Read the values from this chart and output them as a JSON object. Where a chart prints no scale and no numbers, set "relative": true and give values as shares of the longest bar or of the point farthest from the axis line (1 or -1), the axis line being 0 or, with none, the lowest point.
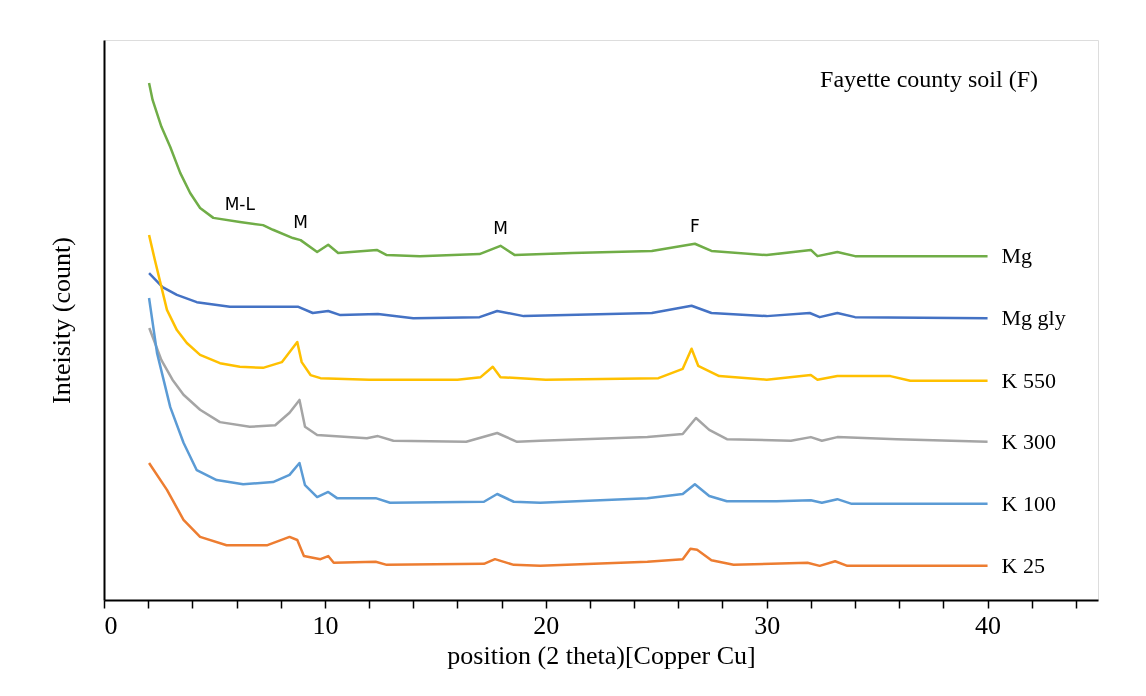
{
  "chart_data": {
    "type": "line",
    "title": "Fayette county soil (F)",
    "xlabel": "position (2 theta)[Copper Cu]",
    "ylabel": "Inteisity (count)",
    "relative": true,
    "xlim": [
      0,
      45
    ],
    "xticks": [
      0,
      {
        "value": 2,
        "label": null
      },
      {
        "value": 4,
        "label": null
      },
      {
        "value": 6,
        "label": null
      },
      {
        "value": 8,
        "label": null
      },
      10,
      {
        "value": 12,
        "label": null
      },
      {
        "value": 14,
        "label": null
      },
      {
        "value": 16,
        "label": null
      },
      {
        "value": 18,
        "label": null
      },
      20,
      {
        "value": 22,
        "label": null
      },
      {
        "value": 24,
        "label": null
      },
      {
        "value": 26,
        "label": null
      },
      {
        "value": 28,
        "label": null
      },
      30,
      {
        "value": 32,
        "label": null
      },
      {
        "value": 34,
        "label": null
      },
      {
        "value": 36,
        "label": null
      },
      {
        "value": 38,
        "label": null
      },
      40,
      {
        "value": 42,
        "label": null
      },
      {
        "value": 44,
        "label": null
      }
    ],
    "grid": false,
    "marker": "none",
    "line_style": "solid",
    "annotations": [
      {
        "text": "M-L",
        "x": 6.15,
        "y": 0.731
      },
      {
        "text": "M",
        "x": 8.9,
        "y": 0.696
      },
      {
        "text": "M",
        "x": 17.95,
        "y": 0.685
      },
      {
        "text": "F",
        "x": 26.75,
        "y": 0.689
      }
    ],
    "series": [
      {
        "name": "Mg",
        "color": "#70ad47",
        "x": [
          2.04,
          2.2,
          2.6,
          3.0,
          3.45,
          3.9,
          4.35,
          4.95,
          6.15,
          7.2,
          7.65,
          8.55,
          8.9,
          9.65,
          10.15,
          10.6,
          12.35,
          12.8,
          14.3,
          17.0,
          17.95,
          18.6,
          21.2,
          24.8,
          26.75,
          27.5,
          30.0,
          32.0,
          32.3,
          33.2,
          34.0,
          40.0
        ],
        "values": [
          1.0,
          0.967,
          0.915,
          0.876,
          0.826,
          0.787,
          0.758,
          0.739,
          0.731,
          0.725,
          0.716,
          0.7,
          0.696,
          0.673,
          0.687,
          0.671,
          0.677,
          0.667,
          0.665,
          0.669,
          0.685,
          0.667,
          0.671,
          0.675,
          0.689,
          0.675,
          0.667,
          0.677,
          0.665,
          0.673,
          0.665,
          0.665
        ]
      },
      {
        "name": "Mg gly",
        "color": "#4472c4",
        "x": [
          2.04,
          2.65,
          3.3,
          4.2,
          5.7,
          8.8,
          9.45,
          10.15,
          10.7,
          12.4,
          14.0,
          17.0,
          17.8,
          19.0,
          24.8,
          26.6,
          27.5,
          30.0,
          31.95,
          32.4,
          33.2,
          34.0,
          40.0
        ],
        "values": [
          0.632,
          0.605,
          0.59,
          0.576,
          0.567,
          0.567,
          0.555,
          0.559,
          0.551,
          0.553,
          0.545,
          0.547,
          0.559,
          0.549,
          0.555,
          0.569,
          0.555,
          0.549,
          0.555,
          0.547,
          0.555,
          0.547,
          0.545
        ]
      },
      {
        "name": "K 550",
        "color": "#ffc000",
        "x": [
          2.04,
          2.3,
          2.85,
          3.3,
          3.75,
          4.35,
          5.25,
          6.15,
          7.2,
          8.05,
          8.75,
          8.95,
          9.35,
          9.8,
          12.0,
          16.0,
          17.05,
          17.6,
          17.95,
          20.0,
          25.1,
          26.2,
          26.6,
          26.9,
          27.85,
          30.0,
          32.0,
          32.3,
          33.2,
          35.6,
          36.5,
          40.0
        ],
        "values": [
          0.706,
          0.658,
          0.561,
          0.522,
          0.497,
          0.474,
          0.458,
          0.451,
          0.449,
          0.46,
          0.499,
          0.46,
          0.435,
          0.429,
          0.426,
          0.426,
          0.431,
          0.451,
          0.431,
          0.426,
          0.429,
          0.447,
          0.486,
          0.453,
          0.433,
          0.426,
          0.435,
          0.426,
          0.433,
          0.433,
          0.424,
          0.424
        ]
      },
      {
        "name": "K 300",
        "color": "#a5a5a5",
        "x": [
          2.05,
          2.6,
          3.1,
          3.6,
          4.35,
          5.25,
          6.6,
          7.75,
          8.4,
          8.85,
          9.1,
          9.65,
          11.9,
          12.4,
          13.1,
          16.4,
          17.8,
          18.7,
          19.75,
          24.6,
          26.2,
          26.8,
          27.4,
          28.2,
          31.1,
          32.0,
          32.5,
          33.2,
          35.9,
          40.0
        ],
        "values": [
          0.526,
          0.464,
          0.426,
          0.397,
          0.368,
          0.344,
          0.335,
          0.338,
          0.362,
          0.387,
          0.335,
          0.319,
          0.313,
          0.317,
          0.308,
          0.306,
          0.323,
          0.306,
          0.308,
          0.315,
          0.321,
          0.352,
          0.329,
          0.311,
          0.308,
          0.315,
          0.308,
          0.315,
          0.311,
          0.306
        ]
      },
      {
        "name": "K 100",
        "color": "#5b9bd5",
        "x": [
          2.04,
          2.4,
          3.0,
          3.6,
          4.2,
          5.1,
          6.3,
          7.65,
          8.4,
          8.85,
          9.1,
          9.65,
          10.15,
          10.55,
          12.3,
          12.95,
          17.2,
          17.8,
          18.55,
          19.75,
          21.4,
          24.6,
          26.2,
          26.75,
          27.4,
          28.2,
          30.45,
          32.0,
          32.5,
          33.2,
          33.85,
          40.0
        ],
        "values": [
          0.584,
          0.478,
          0.373,
          0.304,
          0.251,
          0.232,
          0.224,
          0.228,
          0.242,
          0.265,
          0.222,
          0.199,
          0.209,
          0.197,
          0.197,
          0.188,
          0.19,
          0.205,
          0.19,
          0.188,
          0.191,
          0.197,
          0.205,
          0.224,
          0.201,
          0.191,
          0.191,
          0.193,
          0.188,
          0.195,
          0.186,
          0.186
        ]
      },
      {
        "name": "K 25",
        "color": "#ed7d31",
        "x": [
          2.04,
          2.85,
          3.6,
          4.35,
          5.55,
          7.4,
          8.4,
          8.75,
          9.05,
          9.8,
          10.15,
          10.4,
          12.3,
          12.8,
          17.2,
          17.7,
          18.55,
          19.75,
          24.6,
          26.2,
          26.55,
          26.85,
          27.5,
          28.5,
          31.85,
          32.4,
          33.1,
          33.65,
          40.0
        ],
        "values": [
          0.265,
          0.213,
          0.155,
          0.122,
          0.106,
          0.106,
          0.122,
          0.116,
          0.085,
          0.079,
          0.085,
          0.072,
          0.074,
          0.068,
          0.07,
          0.079,
          0.068,
          0.066,
          0.074,
          0.079,
          0.099,
          0.097,
          0.077,
          0.068,
          0.072,
          0.066,
          0.075,
          0.066,
          0.066
        ]
      }
    ]
  }
}
